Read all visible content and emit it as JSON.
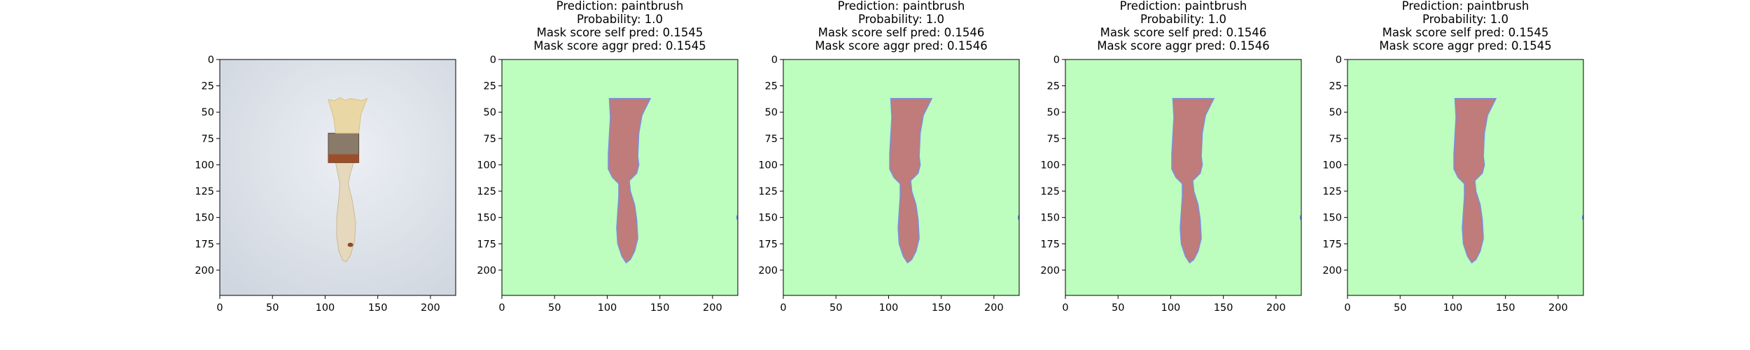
{
  "chart_data": [
    {
      "type": "image",
      "panel": "input-image",
      "title": [],
      "xlim": [
        0,
        224
      ],
      "ylim": [
        224,
        0
      ],
      "xticks": [
        0,
        50,
        100,
        150,
        200
      ],
      "yticks": [
        0,
        25,
        50,
        75,
        100,
        125,
        150,
        175,
        200
      ],
      "content": "photo of a paintbrush on a light gray background"
    },
    {
      "type": "heatmap",
      "panel": "mask-1",
      "title": [
        "Prediction: paintbrush",
        "Probability: 1.0",
        "Mask score self pred: 0.1545",
        "Mask score aggr pred: 0.1545"
      ],
      "xlim": [
        0,
        224
      ],
      "ylim": [
        224,
        0
      ],
      "xticks": [
        0,
        50,
        100,
        150,
        200
      ],
      "yticks": [
        0,
        25,
        50,
        75,
        100,
        125,
        150,
        175,
        200
      ],
      "colors": {
        "background": "#bdfdbd",
        "mask": "#c07b7b",
        "edge": "#7b8fe0"
      }
    },
    {
      "type": "heatmap",
      "panel": "mask-2",
      "title": [
        "Prediction: paintbrush",
        "Probability: 1.0",
        "Mask score self pred: 0.1546",
        "Mask score aggr pred: 0.1546"
      ],
      "xlim": [
        0,
        224
      ],
      "ylim": [
        224,
        0
      ],
      "xticks": [
        0,
        50,
        100,
        150,
        200
      ],
      "yticks": [
        0,
        25,
        50,
        75,
        100,
        125,
        150,
        175,
        200
      ],
      "colors": {
        "background": "#bdfdbd",
        "mask": "#c07b7b",
        "edge": "#7b8fe0"
      }
    },
    {
      "type": "heatmap",
      "panel": "mask-3",
      "title": [
        "Prediction: paintbrush",
        "Probability: 1.0",
        "Mask score self pred: 0.1546",
        "Mask score aggr pred: 0.1546"
      ],
      "xlim": [
        0,
        224
      ],
      "ylim": [
        224,
        0
      ],
      "xticks": [
        0,
        50,
        100,
        150,
        200
      ],
      "yticks": [
        0,
        25,
        50,
        75,
        100,
        125,
        150,
        175,
        200
      ],
      "colors": {
        "background": "#bdfdbd",
        "mask": "#c07b7b",
        "edge": "#7b8fe0"
      }
    },
    {
      "type": "heatmap",
      "panel": "mask-4",
      "title": [
        "Prediction: paintbrush",
        "Probability: 1.0",
        "Mask score self pred: 0.1545",
        "Mask score aggr pred: 0.1545"
      ],
      "xlim": [
        0,
        224
      ],
      "ylim": [
        224,
        0
      ],
      "xticks": [
        0,
        50,
        100,
        150,
        200
      ],
      "yticks": [
        0,
        25,
        50,
        75,
        100,
        125,
        150,
        175,
        200
      ],
      "colors": {
        "background": "#bdfdbd",
        "mask": "#c07b7b",
        "edge": "#7b8fe0"
      }
    }
  ]
}
